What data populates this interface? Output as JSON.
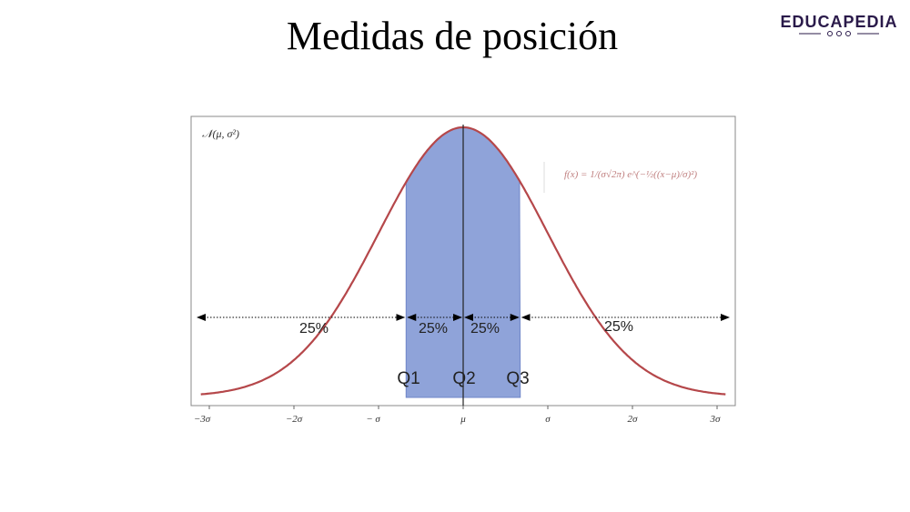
{
  "title": "Medidas de posición",
  "logo": "EDUCAPEDIA",
  "panel": {
    "distribution_label": "𝒩(μ, σ²)",
    "formula": "f(x) = 1/(σ√2π) e^(−½((x−μ)/σ)²)",
    "x_labels": [
      "−3σ",
      "−2σ",
      "− σ",
      "μ",
      "σ",
      "2σ",
      "3σ"
    ],
    "percent_labels": [
      "25%",
      "25%",
      "25%",
      "25%"
    ],
    "quartile_labels": [
      "Q1",
      "Q2",
      "Q3"
    ]
  }
}
